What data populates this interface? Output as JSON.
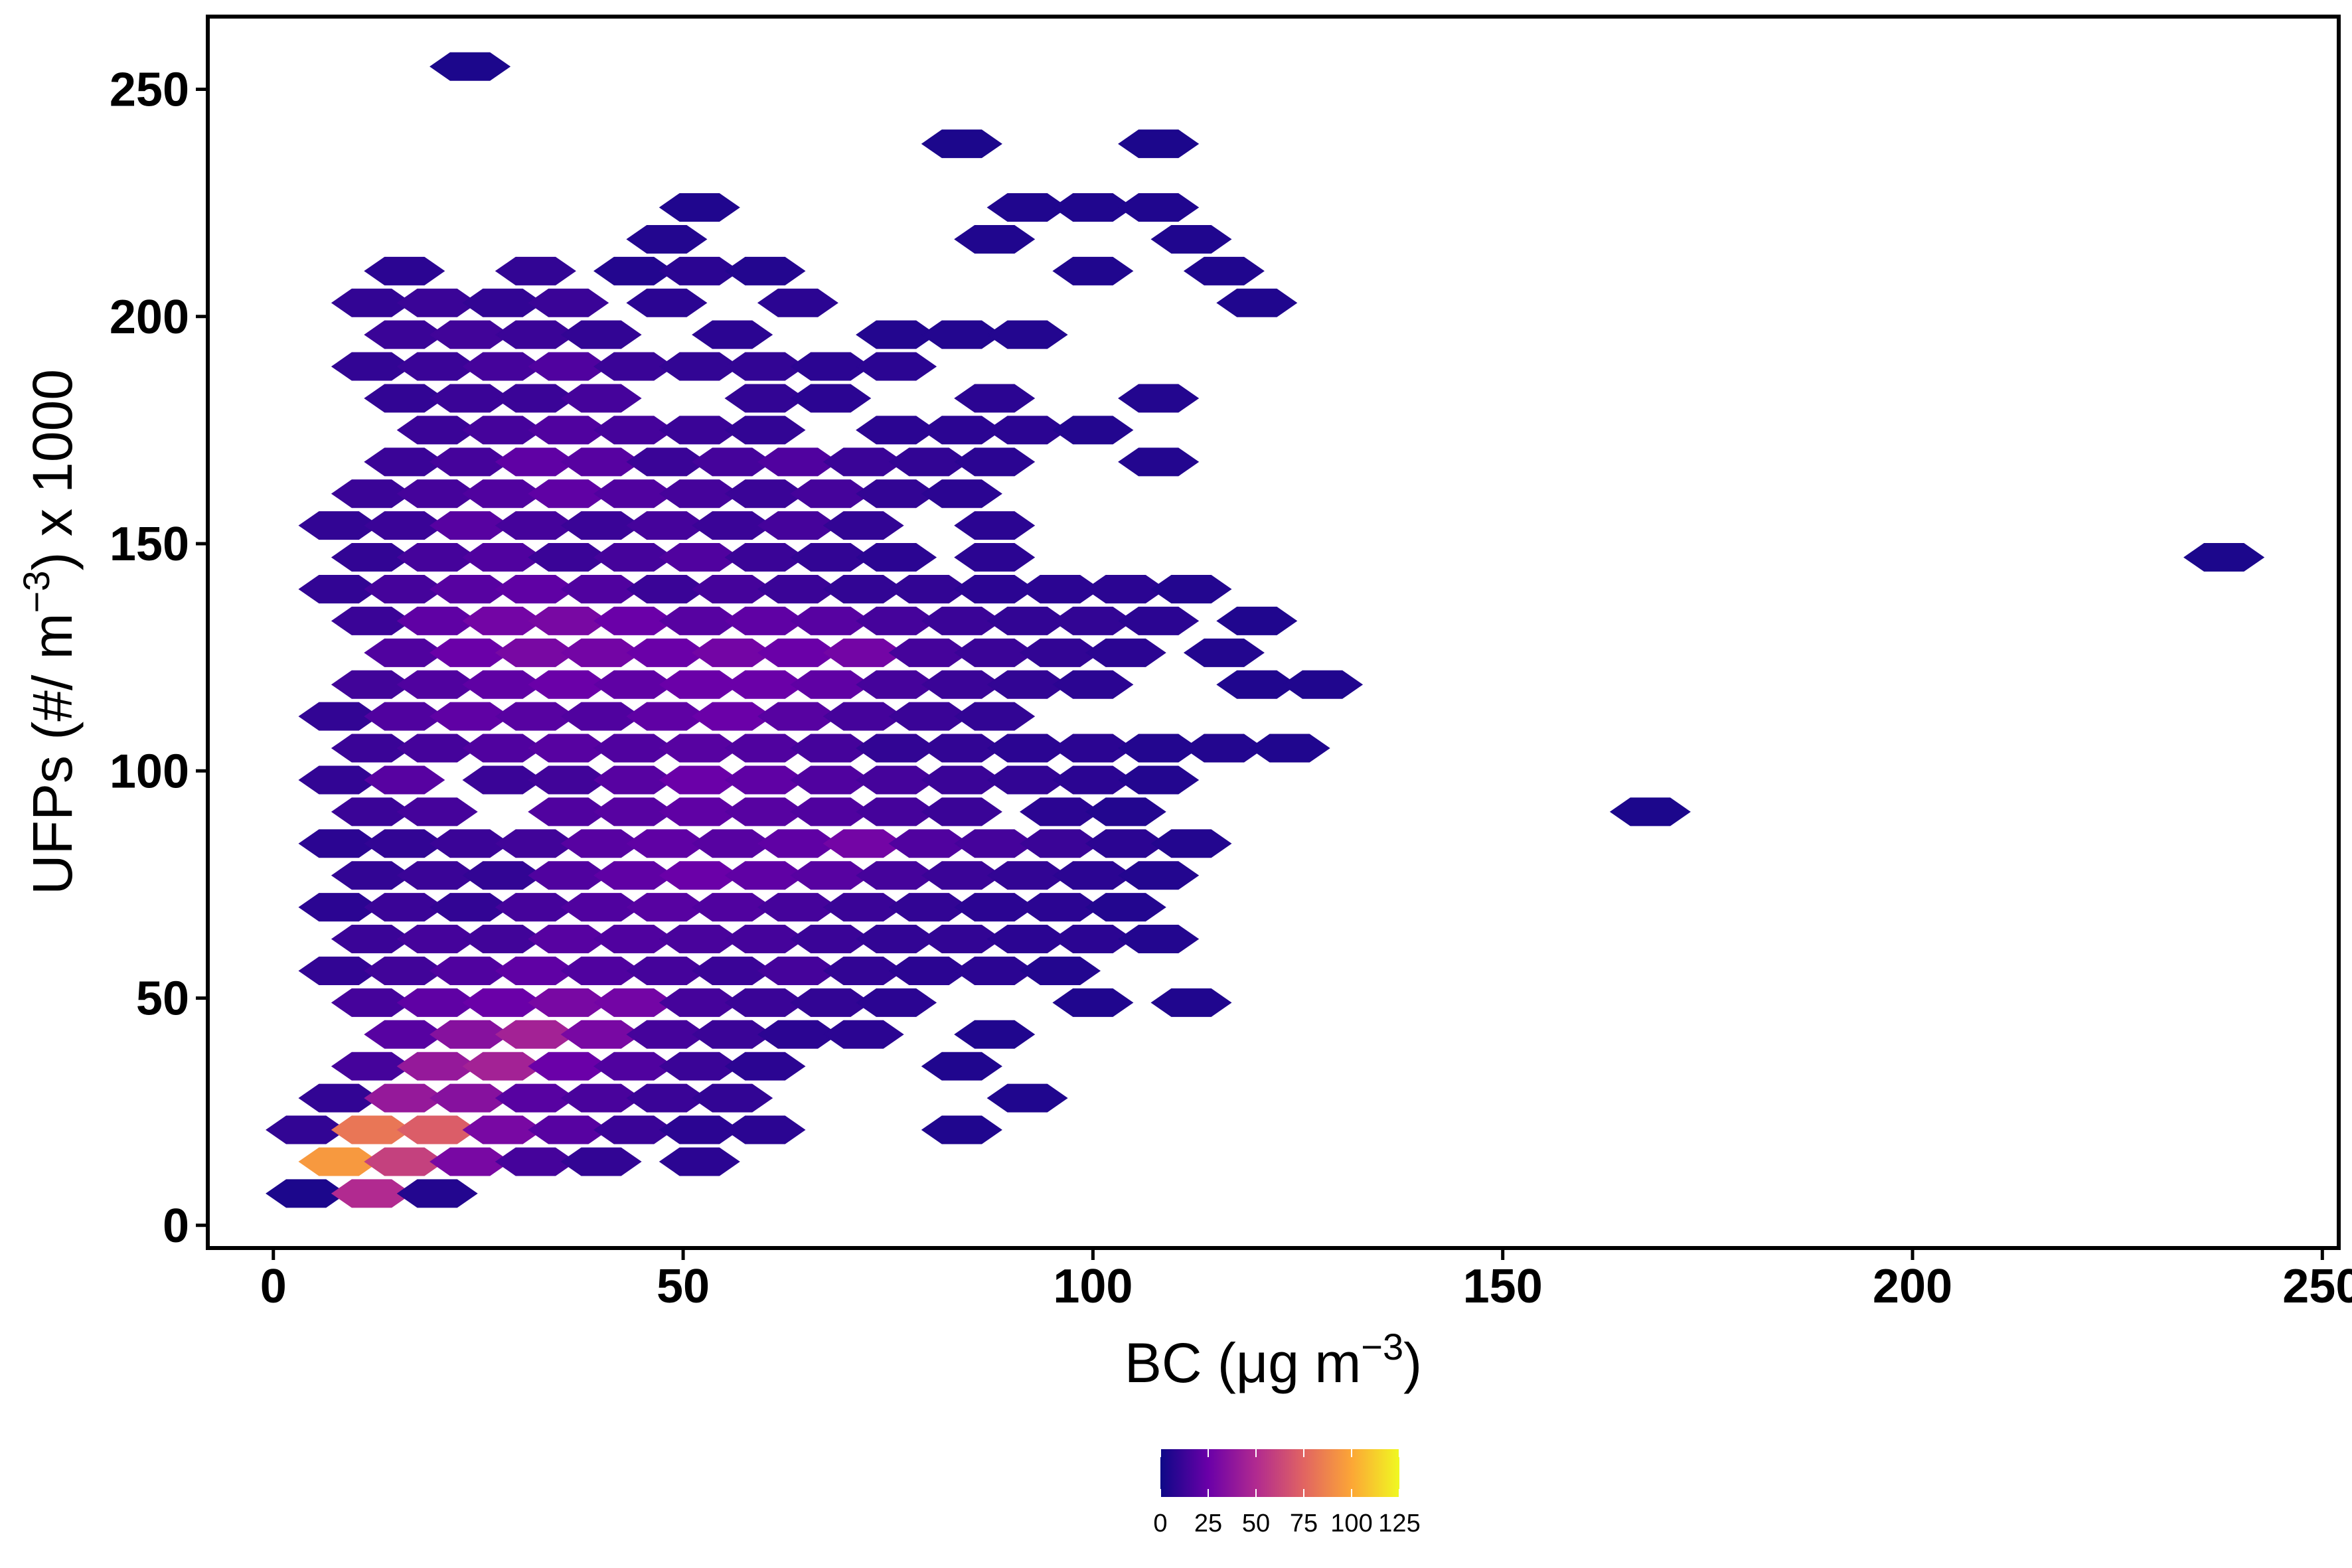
{
  "chart_data": {
    "type": "heatmap",
    "subtype": "hexbin",
    "title": "",
    "xlabel": {
      "main": "BC (μg m",
      "sup": "−3",
      "close": ")"
    },
    "ylabel": {
      "main": "UFPs (#/ m",
      "sup": "−3",
      "close": ") x 1000"
    },
    "xlim": [
      -8,
      252
    ],
    "ylim": [
      -5,
      266
    ],
    "x_ticks": [
      0,
      50,
      100,
      150,
      200,
      250
    ],
    "x_tick_labels": [
      "0",
      "50",
      "100",
      "150",
      "200",
      "250"
    ],
    "y_ticks": [
      0,
      50,
      100,
      150,
      200,
      250
    ],
    "y_tick_labels": [
      "0",
      "50",
      "100",
      "150",
      "200",
      "250"
    ],
    "grid": false,
    "hex_bin_width_x": 7.8,
    "hex_bin_width_y": 7,
    "colormap": "plasma",
    "colormap_stops": [
      "#0d0887",
      "#6a00a8",
      "#b12a90",
      "#e16462",
      "#fca636",
      "#f0f921"
    ],
    "color_range": [
      0,
      125
    ],
    "legend": {
      "position": "bottom",
      "ticks": [
        0,
        25,
        50,
        75,
        100,
        125
      ],
      "tick_labels": [
        "0",
        "25",
        "50",
        "75",
        "100",
        "125"
      ]
    },
    "bins": [
      [
        4,
        7,
        4
      ],
      [
        12,
        7,
        50
      ],
      [
        20,
        7,
        6
      ],
      [
        4,
        21,
        10
      ],
      [
        12,
        21,
        82
      ],
      [
        20,
        21,
        72
      ],
      [
        28,
        21,
        30
      ],
      [
        36,
        21,
        20
      ],
      [
        44,
        21,
        12
      ],
      [
        52,
        21,
        8
      ],
      [
        60,
        21,
        8
      ],
      [
        8,
        14,
        95
      ],
      [
        16,
        14,
        60
      ],
      [
        24,
        14,
        30
      ],
      [
        32,
        14,
        15
      ],
      [
        40,
        14,
        10
      ],
      [
        52,
        14,
        8
      ],
      [
        84,
        21,
        5
      ],
      [
        8,
        28,
        10
      ],
      [
        16,
        28,
        40
      ],
      [
        24,
        28,
        35
      ],
      [
        32,
        28,
        20
      ],
      [
        40,
        28,
        16
      ],
      [
        48,
        28,
        12
      ],
      [
        56,
        28,
        10
      ],
      [
        12,
        35,
        15
      ],
      [
        20,
        35,
        40
      ],
      [
        28,
        35,
        45
      ],
      [
        36,
        35,
        25
      ],
      [
        44,
        35,
        18
      ],
      [
        52,
        35,
        12
      ],
      [
        60,
        35,
        8
      ],
      [
        84,
        35,
        5
      ],
      [
        92,
        28,
        5
      ],
      [
        16,
        42,
        20
      ],
      [
        24,
        42,
        35
      ],
      [
        32,
        42,
        45
      ],
      [
        40,
        42,
        30
      ],
      [
        48,
        42,
        15
      ],
      [
        56,
        42,
        12
      ],
      [
        64,
        42,
        8
      ],
      [
        72,
        42,
        8
      ],
      [
        88,
        42,
        5
      ],
      [
        12,
        49,
        15
      ],
      [
        20,
        49,
        22
      ],
      [
        28,
        49,
        25
      ],
      [
        36,
        49,
        30
      ],
      [
        44,
        49,
        28
      ],
      [
        52,
        49,
        15
      ],
      [
        60,
        49,
        12
      ],
      [
        68,
        49,
        10
      ],
      [
        76,
        49,
        8
      ],
      [
        100,
        49,
        5
      ],
      [
        112,
        49,
        5
      ],
      [
        8,
        56,
        10
      ],
      [
        16,
        56,
        14
      ],
      [
        24,
        56,
        18
      ],
      [
        32,
        56,
        22
      ],
      [
        40,
        56,
        18
      ],
      [
        48,
        56,
        15
      ],
      [
        56,
        56,
        12
      ],
      [
        64,
        56,
        15
      ],
      [
        72,
        56,
        10
      ],
      [
        80,
        56,
        8
      ],
      [
        88,
        56,
        8
      ],
      [
        96,
        56,
        6
      ],
      [
        12,
        63,
        12
      ],
      [
        20,
        63,
        15
      ],
      [
        28,
        63,
        14
      ],
      [
        36,
        63,
        20
      ],
      [
        44,
        63,
        18
      ],
      [
        52,
        63,
        16
      ],
      [
        60,
        63,
        15
      ],
      [
        68,
        63,
        12
      ],
      [
        76,
        63,
        10
      ],
      [
        84,
        63,
        10
      ],
      [
        92,
        63,
        8
      ],
      [
        100,
        63,
        8
      ],
      [
        108,
        63,
        6
      ],
      [
        8,
        70,
        8
      ],
      [
        16,
        70,
        12
      ],
      [
        24,
        70,
        10
      ],
      [
        32,
        70,
        15
      ],
      [
        40,
        70,
        18
      ],
      [
        48,
        70,
        20
      ],
      [
        56,
        70,
        18
      ],
      [
        64,
        70,
        15
      ],
      [
        72,
        70,
        12
      ],
      [
        80,
        70,
        10
      ],
      [
        88,
        70,
        8
      ],
      [
        96,
        70,
        8
      ],
      [
        104,
        70,
        6
      ],
      [
        12,
        77,
        10
      ],
      [
        20,
        77,
        12
      ],
      [
        28,
        77,
        10
      ],
      [
        36,
        77,
        18
      ],
      [
        44,
        77,
        22
      ],
      [
        52,
        77,
        25
      ],
      [
        60,
        77,
        22
      ],
      [
        68,
        77,
        20
      ],
      [
        76,
        77,
        15
      ],
      [
        84,
        77,
        12
      ],
      [
        92,
        77,
        10
      ],
      [
        100,
        77,
        8
      ],
      [
        108,
        77,
        6
      ],
      [
        8,
        84,
        8
      ],
      [
        16,
        84,
        10
      ],
      [
        24,
        84,
        12
      ],
      [
        32,
        84,
        14
      ],
      [
        40,
        84,
        20
      ],
      [
        48,
        84,
        22
      ],
      [
        56,
        84,
        20
      ],
      [
        64,
        84,
        22
      ],
      [
        72,
        84,
        28
      ],
      [
        80,
        84,
        18
      ],
      [
        88,
        84,
        15
      ],
      [
        96,
        84,
        12
      ],
      [
        104,
        84,
        8
      ],
      [
        112,
        84,
        6
      ],
      [
        12,
        91,
        12
      ],
      [
        20,
        91,
        15
      ],
      [
        36,
        91,
        18
      ],
      [
        44,
        91,
        20
      ],
      [
        52,
        91,
        22
      ],
      [
        60,
        91,
        20
      ],
      [
        68,
        91,
        18
      ],
      [
        76,
        91,
        15
      ],
      [
        84,
        91,
        12
      ],
      [
        96,
        91,
        8
      ],
      [
        104,
        91,
        6
      ],
      [
        168,
        91,
        4
      ],
      [
        8,
        98,
        10
      ],
      [
        16,
        98,
        20
      ],
      [
        28,
        98,
        12
      ],
      [
        36,
        98,
        14
      ],
      [
        44,
        98,
        20
      ],
      [
        52,
        98,
        25
      ],
      [
        60,
        98,
        22
      ],
      [
        68,
        98,
        18
      ],
      [
        76,
        98,
        15
      ],
      [
        84,
        98,
        12
      ],
      [
        92,
        98,
        10
      ],
      [
        100,
        98,
        8
      ],
      [
        108,
        98,
        6
      ],
      [
        12,
        105,
        12
      ],
      [
        20,
        105,
        15
      ],
      [
        28,
        105,
        18
      ],
      [
        36,
        105,
        20
      ],
      [
        44,
        105,
        18
      ],
      [
        52,
        105,
        20
      ],
      [
        60,
        105,
        18
      ],
      [
        68,
        105,
        15
      ],
      [
        76,
        105,
        10
      ],
      [
        84,
        105,
        10
      ],
      [
        92,
        105,
        8
      ],
      [
        100,
        105,
        8
      ],
      [
        108,
        105,
        6
      ],
      [
        116,
        105,
        6
      ],
      [
        124,
        105,
        5
      ],
      [
        8,
        112,
        10
      ],
      [
        16,
        112,
        18
      ],
      [
        24,
        112,
        22
      ],
      [
        32,
        112,
        20
      ],
      [
        40,
        112,
        18
      ],
      [
        48,
        112,
        22
      ],
      [
        56,
        112,
        25
      ],
      [
        64,
        112,
        20
      ],
      [
        72,
        112,
        15
      ],
      [
        80,
        112,
        12
      ],
      [
        88,
        112,
        10
      ],
      [
        12,
        119,
        14
      ],
      [
        20,
        119,
        18
      ],
      [
        28,
        119,
        22
      ],
      [
        36,
        119,
        25
      ],
      [
        44,
        119,
        22
      ],
      [
        52,
        119,
        25
      ],
      [
        60,
        119,
        25
      ],
      [
        68,
        119,
        22
      ],
      [
        76,
        119,
        15
      ],
      [
        84,
        119,
        12
      ],
      [
        92,
        119,
        10
      ],
      [
        100,
        119,
        8
      ],
      [
        120,
        119,
        5
      ],
      [
        128,
        119,
        5
      ],
      [
        16,
        126,
        18
      ],
      [
        24,
        126,
        25
      ],
      [
        32,
        126,
        30
      ],
      [
        40,
        126,
        28
      ],
      [
        48,
        126,
        25
      ],
      [
        56,
        126,
        28
      ],
      [
        64,
        126,
        25
      ],
      [
        72,
        126,
        28
      ],
      [
        80,
        126,
        15
      ],
      [
        88,
        126,
        12
      ],
      [
        96,
        126,
        10
      ],
      [
        104,
        126,
        8
      ],
      [
        116,
        126,
        6
      ],
      [
        12,
        133,
        12
      ],
      [
        20,
        133,
        22
      ],
      [
        28,
        133,
        28
      ],
      [
        36,
        133,
        30
      ],
      [
        44,
        133,
        25
      ],
      [
        52,
        133,
        20
      ],
      [
        60,
        133,
        22
      ],
      [
        68,
        133,
        20
      ],
      [
        76,
        133,
        15
      ],
      [
        84,
        133,
        12
      ],
      [
        92,
        133,
        10
      ],
      [
        100,
        133,
        10
      ],
      [
        108,
        133,
        8
      ],
      [
        120,
        133,
        5
      ],
      [
        8,
        140,
        10
      ],
      [
        16,
        140,
        15
      ],
      [
        24,
        140,
        20
      ],
      [
        32,
        140,
        22
      ],
      [
        40,
        140,
        18
      ],
      [
        48,
        140,
        12
      ],
      [
        56,
        140,
        15
      ],
      [
        64,
        140,
        12
      ],
      [
        72,
        140,
        10
      ],
      [
        80,
        140,
        10
      ],
      [
        88,
        140,
        8
      ],
      [
        96,
        140,
        8
      ],
      [
        104,
        140,
        8
      ],
      [
        112,
        140,
        6
      ],
      [
        12,
        147,
        10
      ],
      [
        20,
        147,
        15
      ],
      [
        28,
        147,
        18
      ],
      [
        36,
        147,
        12
      ],
      [
        44,
        147,
        15
      ],
      [
        52,
        147,
        18
      ],
      [
        60,
        147,
        12
      ],
      [
        68,
        147,
        10
      ],
      [
        76,
        147,
        8
      ],
      [
        88,
        147,
        8
      ],
      [
        238,
        147,
        4
      ],
      [
        8,
        154,
        10
      ],
      [
        16,
        154,
        12
      ],
      [
        24,
        154,
        20
      ],
      [
        32,
        154,
        15
      ],
      [
        40,
        154,
        12
      ],
      [
        48,
        154,
        15
      ],
      [
        56,
        154,
        12
      ],
      [
        64,
        154,
        15
      ],
      [
        72,
        154,
        10
      ],
      [
        88,
        154,
        8
      ],
      [
        12,
        161,
        12
      ],
      [
        20,
        161,
        15
      ],
      [
        28,
        161,
        18
      ],
      [
        36,
        161,
        22
      ],
      [
        44,
        161,
        18
      ],
      [
        52,
        161,
        15
      ],
      [
        60,
        161,
        12
      ],
      [
        68,
        161,
        15
      ],
      [
        76,
        161,
        10
      ],
      [
        84,
        161,
        8
      ],
      [
        16,
        168,
        12
      ],
      [
        24,
        168,
        15
      ],
      [
        32,
        168,
        22
      ],
      [
        40,
        168,
        20
      ],
      [
        48,
        168,
        12
      ],
      [
        56,
        168,
        15
      ],
      [
        64,
        168,
        18
      ],
      [
        72,
        168,
        12
      ],
      [
        80,
        168,
        10
      ],
      [
        88,
        168,
        8
      ],
      [
        108,
        168,
        6
      ],
      [
        20,
        175,
        12
      ],
      [
        28,
        175,
        15
      ],
      [
        36,
        175,
        18
      ],
      [
        44,
        175,
        15
      ],
      [
        52,
        175,
        12
      ],
      [
        60,
        175,
        10
      ],
      [
        76,
        175,
        8
      ],
      [
        84,
        175,
        8
      ],
      [
        92,
        175,
        8
      ],
      [
        100,
        175,
        6
      ],
      [
        16,
        182,
        10
      ],
      [
        24,
        182,
        12
      ],
      [
        32,
        182,
        12
      ],
      [
        40,
        182,
        15
      ],
      [
        60,
        182,
        10
      ],
      [
        68,
        182,
        8
      ],
      [
        88,
        182,
        8
      ],
      [
        108,
        182,
        6
      ],
      [
        12,
        189,
        10
      ],
      [
        20,
        189,
        12
      ],
      [
        28,
        189,
        15
      ],
      [
        36,
        189,
        18
      ],
      [
        44,
        189,
        12
      ],
      [
        52,
        189,
        10
      ],
      [
        60,
        189,
        10
      ],
      [
        68,
        189,
        8
      ],
      [
        76,
        189,
        8
      ],
      [
        16,
        196,
        12
      ],
      [
        24,
        196,
        14
      ],
      [
        32,
        196,
        12
      ],
      [
        40,
        196,
        10
      ],
      [
        56,
        196,
        8
      ],
      [
        76,
        196,
        6
      ],
      [
        84,
        196,
        6
      ],
      [
        92,
        196,
        6
      ],
      [
        12,
        203,
        10
      ],
      [
        20,
        203,
        12
      ],
      [
        28,
        203,
        10
      ],
      [
        36,
        203,
        12
      ],
      [
        48,
        203,
        8
      ],
      [
        64,
        203,
        8
      ],
      [
        120,
        203,
        5
      ],
      [
        16,
        210,
        8
      ],
      [
        32,
        210,
        10
      ],
      [
        44,
        210,
        6
      ],
      [
        52,
        210,
        8
      ],
      [
        60,
        210,
        6
      ],
      [
        100,
        210,
        5
      ],
      [
        116,
        210,
        5
      ],
      [
        48,
        217,
        6
      ],
      [
        88,
        217,
        5
      ],
      [
        112,
        217,
        5
      ],
      [
        52,
        224,
        5
      ],
      [
        92,
        224,
        5
      ],
      [
        100,
        224,
        5
      ],
      [
        108,
        224,
        5
      ],
      [
        84,
        238,
        4
      ],
      [
        108,
        238,
        4
      ],
      [
        24,
        255,
        4
      ]
    ]
  }
}
